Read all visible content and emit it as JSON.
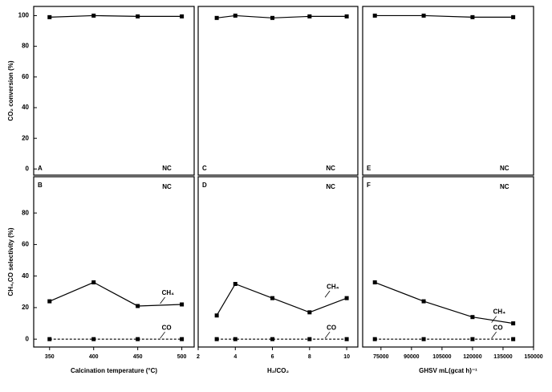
{
  "chart_data": [
    {
      "type": "line",
      "panel_label": "A",
      "annotation": "NC",
      "ylabel": "CO₂ conversion (%)",
      "x": [
        350,
        400,
        450,
        500
      ],
      "xlim": [
        332,
        514
      ],
      "ylim": [
        -4,
        106
      ],
      "yticks": [
        0,
        20,
        40,
        60,
        80,
        100
      ],
      "series": [
        {
          "values": [
            99,
            100,
            99.5,
            99.5
          ],
          "color": "#000000"
        }
      ]
    },
    {
      "type": "line",
      "panel_label": "B",
      "annotation": "NC",
      "ylabel": "CH₄,CO selectivity (%)",
      "xlabel": "Calcination temperature (°C)",
      "x": [
        350,
        400,
        450,
        500
      ],
      "xlim": [
        332,
        514
      ],
      "ylim": [
        -5,
        103
      ],
      "yticks": [
        0,
        20,
        40,
        60,
        80
      ],
      "xticks": [
        350,
        400,
        450,
        500
      ],
      "series": [
        {
          "name": "CH₄",
          "values": [
            24,
            36,
            21,
            22
          ],
          "color": "#000000",
          "dashed": false
        },
        {
          "name": "CO",
          "values": [
            0,
            0,
            0,
            0
          ],
          "color": "#000000",
          "dashed": true
        }
      ]
    },
    {
      "type": "line",
      "panel_label": "C",
      "annotation": "NC",
      "x": [
        3,
        4,
        6,
        8,
        10
      ],
      "xlim": [
        2,
        10.6
      ],
      "ylim": [
        -4,
        106
      ],
      "series": [
        {
          "values": [
            98.5,
            100,
            98.5,
            99.5,
            99.5
          ],
          "color": "#000000"
        }
      ]
    },
    {
      "type": "line",
      "panel_label": "D",
      "annotation": "NC",
      "xlabel": "H₂/CO₂",
      "x": [
        3,
        4,
        6,
        8,
        10
      ],
      "xlim": [
        2,
        10.6
      ],
      "ylim": [
        -5,
        103
      ],
      "xticks": [
        2,
        4,
        6,
        8,
        10
      ],
      "series": [
        {
          "name": "CH₄",
          "values": [
            15,
            35,
            26,
            17,
            26
          ],
          "color": "#000000",
          "dashed": false
        },
        {
          "name": "CO",
          "values": [
            0,
            0,
            0,
            0,
            0
          ],
          "color": "#000000",
          "dashed": true
        }
      ]
    },
    {
      "type": "line",
      "panel_label": "E",
      "annotation": "NC",
      "x": [
        72000,
        96000,
        120000,
        140000
      ],
      "xlim": [
        66000,
        150000
      ],
      "ylim": [
        -4,
        106
      ],
      "series": [
        {
          "values": [
            100,
            100,
            99,
            99
          ],
          "color": "#000000"
        }
      ]
    },
    {
      "type": "line",
      "panel_label": "F",
      "annotation": "NC",
      "xlabel": "GHSV mL(gcat h)⁻¹",
      "x": [
        72000,
        96000,
        120000,
        140000
      ],
      "xlim": [
        66000,
        150000
      ],
      "ylim": [
        -5,
        103
      ],
      "xticks": [
        75000,
        90000,
        105000,
        120000,
        135000,
        150000
      ],
      "series": [
        {
          "name": "CH₄",
          "values": [
            36,
            24,
            14,
            10
          ],
          "color": "#000000",
          "dashed": false
        },
        {
          "name": "CO",
          "values": [
            0,
            0,
            0,
            0
          ],
          "color": "#000000",
          "dashed": true
        }
      ]
    }
  ]
}
